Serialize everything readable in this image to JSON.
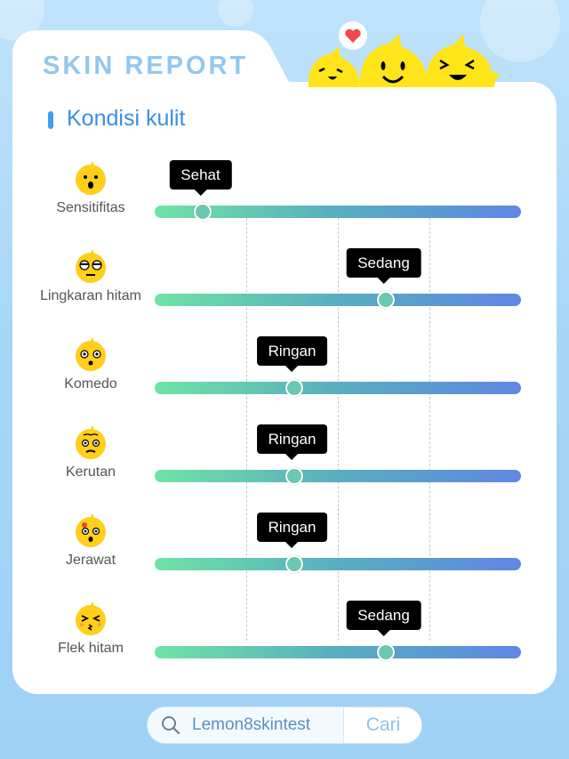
{
  "header": {
    "title": "SKIN REPORT",
    "section_title": "Kondisi kulit"
  },
  "rows": [
    {
      "label": "Sensitifitas",
      "level": "Sehat",
      "value": 0.125,
      "face_icon": "surprised-face-icon"
    },
    {
      "label": "Lingkaran hitam",
      "level": "Sedang",
      "value": 0.625,
      "face_icon": "tired-face-icon"
    },
    {
      "label": "Komedo",
      "level": "Ringan",
      "value": 0.375,
      "face_icon": "worried-face-icon"
    },
    {
      "label": "Kerutan",
      "level": "Ringan",
      "value": 0.375,
      "face_icon": "wrinkled-face-icon"
    },
    {
      "label": "Jerawat",
      "level": "Ringan",
      "value": 0.375,
      "face_icon": "pimple-face-icon"
    },
    {
      "label": "Flek hitam",
      "level": "Sedang",
      "value": 0.625,
      "face_icon": "blush-face-icon"
    }
  ],
  "search": {
    "value": "Lemon8skintest",
    "button_label": "Cari"
  },
  "colors": {
    "accent": "#3a8fe3",
    "track_start": "#6ee3a6",
    "track_end": "#5f86e4",
    "knob": "#6cc7b0"
  }
}
